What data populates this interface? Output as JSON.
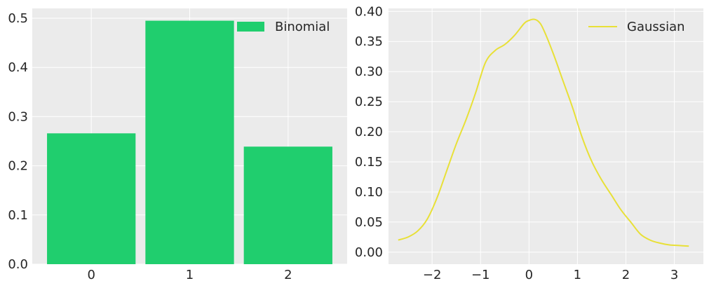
{
  "chart_data": [
    {
      "type": "bar",
      "categories": [
        "0",
        "1",
        "2"
      ],
      "values": [
        0.266,
        0.495,
        0.239
      ],
      "ylim": [
        0,
        0.52
      ],
      "yticks": [
        "0.0",
        "0.1",
        "0.2",
        "0.3",
        "0.4",
        "0.5"
      ],
      "ytick_values": [
        0,
        0.1,
        0.2,
        0.3,
        0.4,
        0.5
      ],
      "xticks": [
        "0",
        "1",
        "2"
      ],
      "legend": {
        "label": "Binomial",
        "placement": "top-right"
      },
      "grid": true,
      "colors": {
        "bar": "#20CE6E",
        "background": "#EBEBEB",
        "grid": "#FFFFFF"
      }
    },
    {
      "type": "line",
      "series": [
        {
          "name": "Gaussian",
          "x": [
            -2.7,
            -2.5,
            -2.3,
            -2.1,
            -1.9,
            -1.7,
            -1.5,
            -1.3,
            -1.1,
            -0.9,
            -0.7,
            -0.5,
            -0.3,
            -0.1,
            0.0,
            0.1,
            0.2,
            0.3,
            0.5,
            0.7,
            0.9,
            1.1,
            1.3,
            1.5,
            1.7,
            1.9,
            2.1,
            2.3,
            2.5,
            2.7,
            2.9,
            3.1,
            3.3
          ],
          "y": [
            0.02,
            0.025,
            0.035,
            0.055,
            0.09,
            0.135,
            0.18,
            0.22,
            0.265,
            0.315,
            0.335,
            0.345,
            0.36,
            0.38,
            0.385,
            0.387,
            0.383,
            0.37,
            0.33,
            0.285,
            0.24,
            0.19,
            0.15,
            0.12,
            0.095,
            0.07,
            0.05,
            0.03,
            0.02,
            0.015,
            0.012,
            0.011,
            0.01
          ]
        }
      ],
      "xlim": [
        -2.9,
        3.6
      ],
      "ylim": [
        -0.02,
        0.405
      ],
      "xticks": [
        "−2",
        "−1",
        "0",
        "1",
        "2",
        "3"
      ],
      "xtick_values": [
        -2,
        -1,
        0,
        1,
        2,
        3
      ],
      "yticks": [
        "0.00",
        "0.05",
        "0.10",
        "0.15",
        "0.20",
        "0.25",
        "0.30",
        "0.35",
        "0.40"
      ],
      "ytick_values": [
        0,
        0.05,
        0.1,
        0.15,
        0.2,
        0.25,
        0.3,
        0.35,
        0.4
      ],
      "legend": {
        "label": "Gaussian",
        "placement": "top-right"
      },
      "grid": true,
      "colors": {
        "line": "#E8E037",
        "background": "#EBEBEB",
        "grid": "#FFFFFF"
      }
    }
  ]
}
